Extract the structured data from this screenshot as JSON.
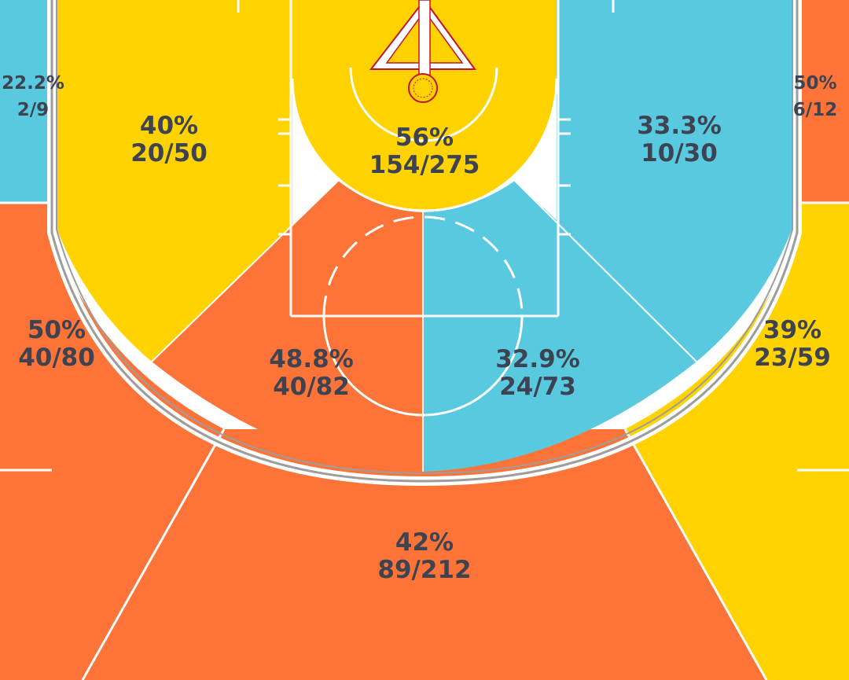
{
  "colors": {
    "orange": "#FE7438",
    "blue": "#59C9E0",
    "yellow": "#FFD200",
    "line": "#ffffff",
    "boundary": "#9d9d9d",
    "hoop": "#c4122f",
    "text": "#3d4351"
  },
  "chart_data": {
    "type": "heatmap",
    "description_type": "basketball shot chart by court zone",
    "zones": [
      {
        "id": "left-corner-three",
        "pct": "22.2%",
        "made_attempts": "2/9",
        "made": 2,
        "attempts": 9,
        "color": "#59C9E0"
      },
      {
        "id": "right-corner-three",
        "pct": "50%",
        "made_attempts": "6/12",
        "made": 6,
        "attempts": 12,
        "color": "#FE7438"
      },
      {
        "id": "left-baseline-mid",
        "pct": "40%",
        "made_attempts": "20/50",
        "made": 20,
        "attempts": 50,
        "color": "#FFD200"
      },
      {
        "id": "right-baseline-mid",
        "pct": "33.3%",
        "made_attempts": "10/30",
        "made": 10,
        "attempts": 30,
        "color": "#59C9E0"
      },
      {
        "id": "restricted-area",
        "pct": "56%",
        "made_attempts": "154/275",
        "made": 154,
        "attempts": 275,
        "color": "#FFD200"
      },
      {
        "id": "left-wing-three",
        "pct": "50%",
        "made_attempts": "40/80",
        "made": 40,
        "attempts": 80,
        "color": "#FE7438"
      },
      {
        "id": "right-wing-three",
        "pct": "39%",
        "made_attempts": "23/59",
        "made": 23,
        "attempts": 59,
        "color": "#FFD200"
      },
      {
        "id": "left-elbow-mid",
        "pct": "48.8%",
        "made_attempts": "40/82",
        "made": 40,
        "attempts": 82,
        "color": "#FE7438"
      },
      {
        "id": "right-elbow-mid",
        "pct": "32.9%",
        "made_attempts": "24/73",
        "made": 24,
        "attempts": 73,
        "color": "#59C9E0"
      },
      {
        "id": "top-key-three",
        "pct": "42%",
        "made_attempts": "89/212",
        "made": 89,
        "attempts": 212,
        "color": "#FE7438"
      }
    ]
  }
}
